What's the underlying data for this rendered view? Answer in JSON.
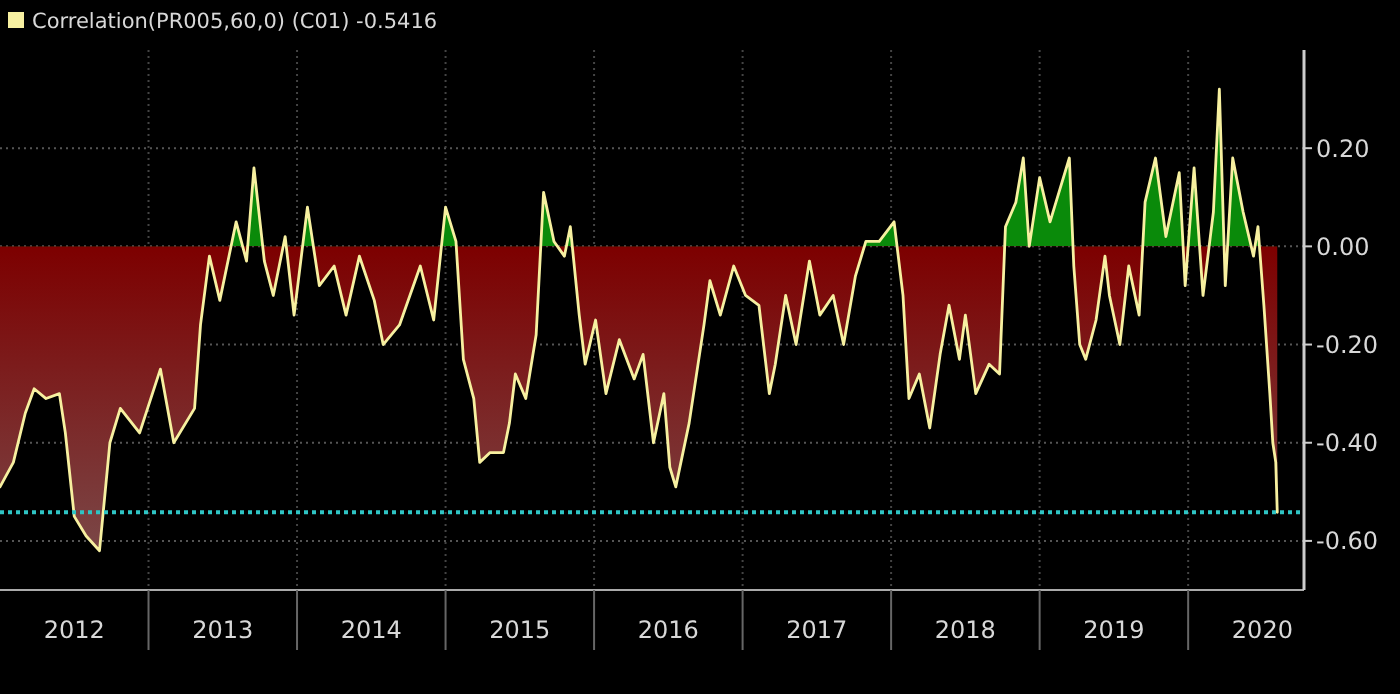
{
  "chart_data": {
    "type": "area",
    "legend": "top left",
    "grid": true,
    "xlim": [
      2012,
      2020.78
    ],
    "xticks": [
      {
        "value": 2012.5,
        "label": "2012"
      },
      {
        "value": 2013.5,
        "label": "2013"
      },
      {
        "value": 2014.5,
        "label": "2014"
      },
      {
        "value": 2015.5,
        "label": "2015"
      },
      {
        "value": 2016.5,
        "label": "2016"
      },
      {
        "value": 2017.5,
        "label": "2017"
      },
      {
        "value": 2018.5,
        "label": "2018"
      },
      {
        "value": 2019.5,
        "label": "2019"
      },
      {
        "value": 2020.5,
        "label": "2020"
      },
      {
        "value": 2013,
        "label": null
      },
      {
        "value": 2014,
        "label": null
      },
      {
        "value": 2015,
        "label": null
      },
      {
        "value": 2016,
        "label": null
      },
      {
        "value": 2017,
        "label": null
      },
      {
        "value": 2018,
        "label": null
      },
      {
        "value": 2019,
        "label": null
      },
      {
        "value": 2020,
        "label": null
      }
    ],
    "ylim": [
      -0.7,
      0.4
    ],
    "yticks": [
      {
        "value": 0.2,
        "label": "0.20"
      },
      {
        "value": 0,
        "label": "0.00"
      },
      {
        "value": -0.2,
        "label": "-0.20"
      },
      {
        "value": -0.4,
        "label": "-0.40"
      },
      {
        "value": -0.6,
        "label": "-0.60"
      }
    ],
    "ref_lines": [
      {
        "axis": "y",
        "value": -0.5416,
        "color": "#2fc4c4",
        "line_style": "dotted"
      }
    ],
    "series": [
      {
        "name": "Correlation(PR005,60,0) (C01) -0.5416",
        "color": "#f7f0a0",
        "x": [
          2012.0,
          2012.09,
          2012.17,
          2012.23,
          2012.31,
          2012.4,
          2012.44,
          2012.5,
          2012.58,
          2012.67,
          2012.74,
          2012.81,
          2012.94,
          2013.08,
          2013.17,
          2013.31,
          2013.35,
          2013.41,
          2013.48,
          2013.59,
          2013.66,
          2013.71,
          2013.78,
          2013.84,
          2013.92,
          2013.98,
          2014.07,
          2014.15,
          2014.25,
          2014.33,
          2014.42,
          2014.52,
          2014.58,
          2014.69,
          2014.83,
          2014.92,
          2015.0,
          2015.07,
          2015.12,
          2015.19,
          2015.23,
          2015.3,
          2015.39,
          2015.43,
          2015.47,
          2015.54,
          2015.61,
          2015.66,
          2015.73,
          2015.8,
          2015.84,
          2015.9,
          2015.94,
          2016.01,
          2016.08,
          2016.17,
          2016.27,
          2016.33,
          2016.4,
          2016.47,
          2016.51,
          2016.55,
          2016.64,
          2016.74,
          2016.78,
          2016.85,
          2016.94,
          2017.02,
          2017.11,
          2017.18,
          2017.22,
          2017.29,
          2017.36,
          2017.45,
          2017.52,
          2017.61,
          2017.68,
          2017.76,
          2017.83,
          2017.92,
          2018.02,
          2018.08,
          2018.12,
          2018.19,
          2018.26,
          2018.33,
          2018.39,
          2018.46,
          2018.5,
          2018.57,
          2018.66,
          2018.73,
          2018.77,
          2018.84,
          2018.89,
          2018.93,
          2019.0,
          2019.07,
          2019.13,
          2019.2,
          2019.23,
          2019.27,
          2019.31,
          2019.38,
          2019.44,
          2019.47,
          2019.54,
          2019.6,
          2019.67,
          2019.71,
          2019.78,
          2019.85,
          2019.94,
          2019.98,
          2020.04,
          2020.1,
          2020.17,
          2020.21,
          2020.25,
          2020.3,
          2020.37,
          2020.44,
          2020.47,
          2020.51,
          2020.55,
          2020.57,
          2020.59,
          2020.6
        ],
        "values": [
          -0.49,
          -0.44,
          -0.34,
          -0.29,
          -0.31,
          -0.3,
          -0.38,
          -0.55,
          -0.59,
          -0.62,
          -0.4,
          -0.33,
          -0.38,
          -0.25,
          -0.4,
          -0.33,
          -0.16,
          -0.02,
          -0.11,
          0.05,
          -0.03,
          0.16,
          -0.03,
          -0.1,
          0.02,
          -0.14,
          0.08,
          -0.08,
          -0.04,
          -0.14,
          -0.02,
          -0.11,
          -0.2,
          -0.16,
          -0.04,
          -0.15,
          0.08,
          0.01,
          -0.23,
          -0.31,
          -0.44,
          -0.42,
          -0.42,
          -0.36,
          -0.26,
          -0.31,
          -0.18,
          0.11,
          0.01,
          -0.02,
          0.04,
          -0.14,
          -0.24,
          -0.15,
          -0.3,
          -0.19,
          -0.27,
          -0.22,
          -0.4,
          -0.3,
          -0.45,
          -0.49,
          -0.36,
          -0.16,
          -0.07,
          -0.14,
          -0.04,
          -0.1,
          -0.12,
          -0.3,
          -0.24,
          -0.1,
          -0.2,
          -0.03,
          -0.14,
          -0.1,
          -0.2,
          -0.06,
          0.01,
          0.01,
          0.05,
          -0.1,
          -0.31,
          -0.26,
          -0.37,
          -0.22,
          -0.12,
          -0.23,
          -0.14,
          -0.3,
          -0.24,
          -0.26,
          0.04,
          0.09,
          0.18,
          0.0,
          0.14,
          0.05,
          0.11,
          0.18,
          -0.04,
          -0.2,
          -0.23,
          -0.15,
          -0.02,
          -0.1,
          -0.2,
          -0.04,
          -0.14,
          0.09,
          0.18,
          0.02,
          0.15,
          -0.08,
          0.16,
          -0.1,
          0.07,
          0.32,
          -0.08,
          0.18,
          0.07,
          -0.02,
          0.04,
          -0.12,
          -0.3,
          -0.4,
          -0.44,
          -0.5416
        ]
      }
    ]
  }
}
